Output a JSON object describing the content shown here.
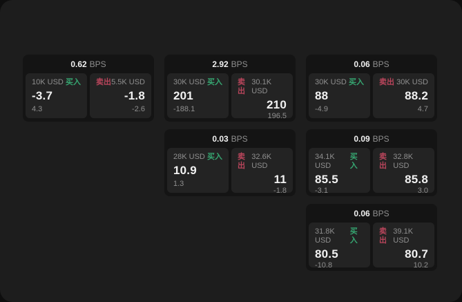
{
  "labels": {
    "buy": "买入",
    "sell": "卖出",
    "bps_suffix": "BPS"
  },
  "colors": {
    "buy": "#36a671",
    "sell": "#b8455b",
    "page_bg": "#1d1d1d",
    "backdrop": "#0e0e0e",
    "card_bg": "#141414",
    "panel_bg": "#232323",
    "text_primary": "#f1f1f1",
    "text_muted": "#8f8f8f"
  },
  "cards": [
    {
      "row": 1,
      "col": 1,
      "bps": "0.62",
      "buy_amount": "10K USD",
      "buy_price": "-3.7",
      "buy_delta": "4.3",
      "sell_amount": "5.5K USD",
      "sell_price": "-1.8",
      "sell_delta": "-2.6"
    },
    {
      "row": 1,
      "col": 2,
      "bps": "2.92",
      "buy_amount": "30K USD",
      "buy_price": "201",
      "buy_delta": "-188.1",
      "sell_amount": "30.1K USD",
      "sell_price": "210",
      "sell_delta": "196.5"
    },
    {
      "row": 1,
      "col": 3,
      "bps": "0.06",
      "buy_amount": "30K USD",
      "buy_price": "88",
      "buy_delta": "-4.9",
      "sell_amount": "30K USD",
      "sell_price": "88.2",
      "sell_delta": "4.7"
    },
    {
      "row": 2,
      "col": 2,
      "bps": "0.03",
      "buy_amount": "28K USD",
      "buy_price": "10.9",
      "buy_delta": "1.3",
      "sell_amount": "32.6K USD",
      "sell_price": "11",
      "sell_delta": "-1.8"
    },
    {
      "row": 2,
      "col": 3,
      "bps": "0.09",
      "buy_amount": "34.1K USD",
      "buy_price": "85.5",
      "buy_delta": "-3.1",
      "sell_amount": "32.8K USD",
      "sell_price": "85.8",
      "sell_delta": "3.0"
    },
    {
      "row": 3,
      "col": 3,
      "bps": "0.06",
      "buy_amount": "31.8K USD",
      "buy_price": "80.5",
      "buy_delta": "-10.8",
      "sell_amount": "39.1K USD",
      "sell_price": "80.7",
      "sell_delta": "10.2"
    }
  ]
}
